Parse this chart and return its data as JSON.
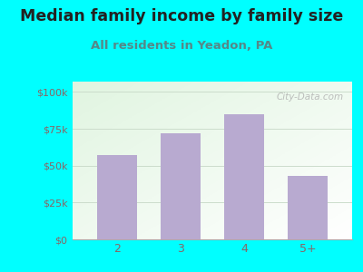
{
  "categories": [
    "2",
    "3",
    "4",
    "5+"
  ],
  "values": [
    57000,
    72000,
    85000,
    43000
  ],
  "bar_color": "#b8aad0",
  "title": "Median family income by family size",
  "subtitle": "All residents in Yeadon, PA",
  "title_fontsize": 12.5,
  "subtitle_fontsize": 9.5,
  "title_color": "#222222",
  "subtitle_color": "#558888",
  "ylabel_ticks": [
    "$0",
    "$25k",
    "$50k",
    "$75k",
    "$100k"
  ],
  "ytick_values": [
    0,
    25000,
    50000,
    75000,
    100000
  ],
  "ylim": [
    0,
    107000
  ],
  "outer_bg": "#00ffff",
  "tick_color": "#886666",
  "watermark": "City-Data.com",
  "grid_color": "#ccddcc",
  "bottom_line_color": "#aaaaaa"
}
